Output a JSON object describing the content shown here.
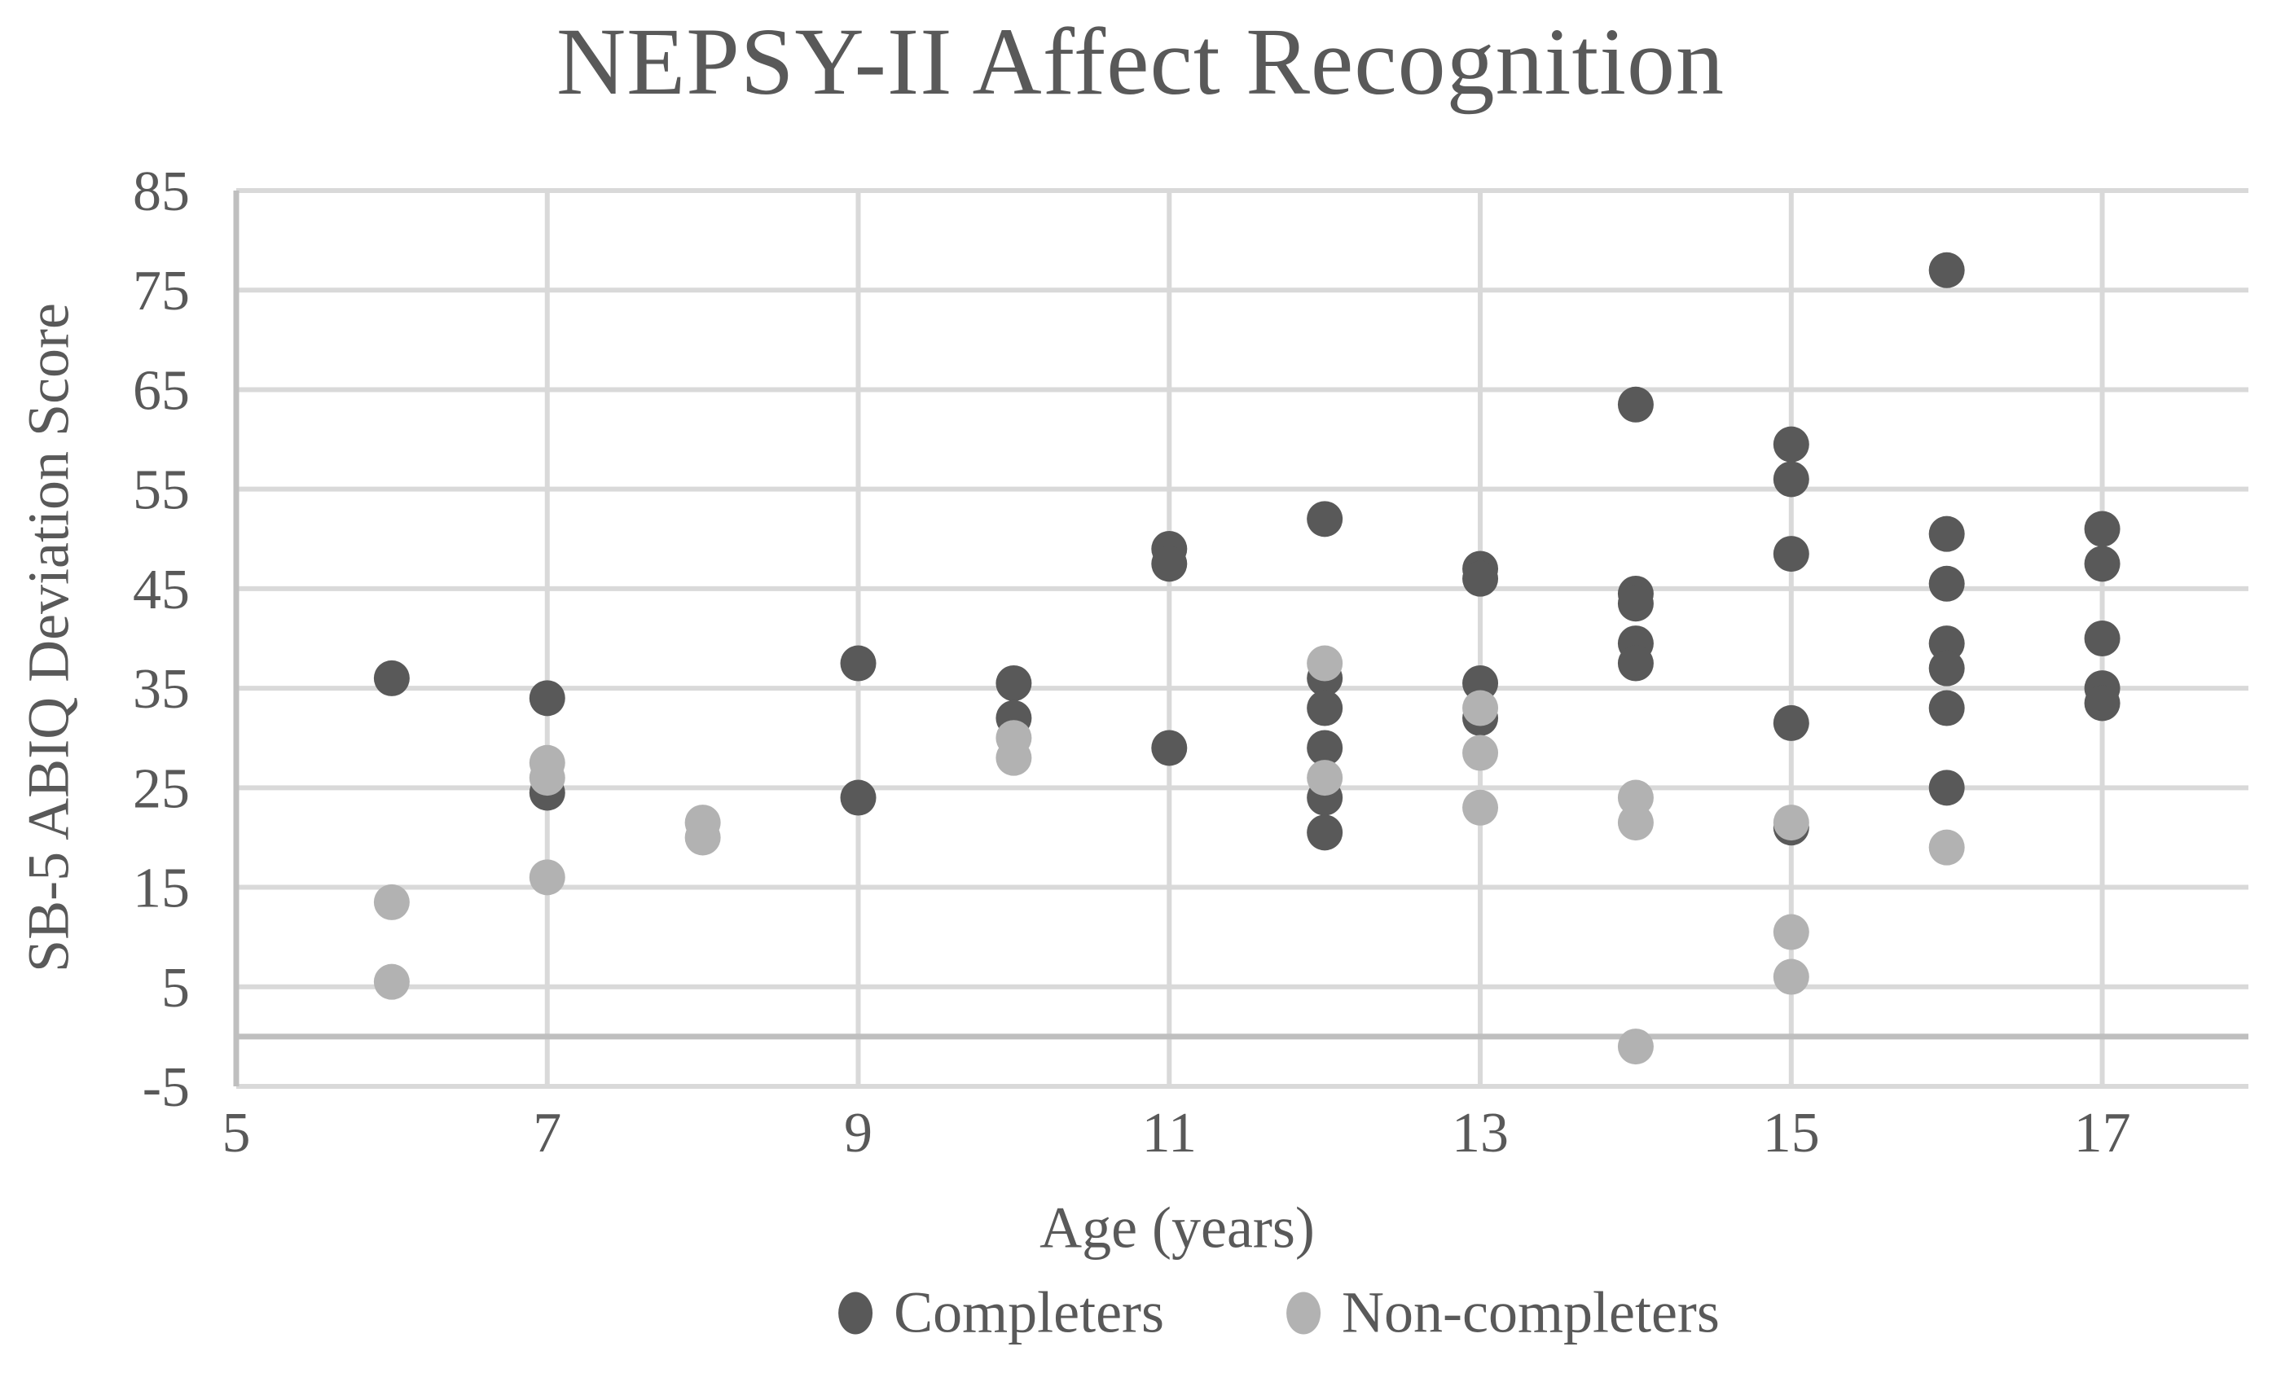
{
  "chart_data": {
    "type": "scatter",
    "title": "NEPSY-II Affect Recognition",
    "xlabel": "Age (years)",
    "ylabel": "SB-5 ABIQ Deviation Score",
    "x_ticks": [
      5,
      7,
      9,
      11,
      13,
      15,
      17
    ],
    "y_ticks": [
      85,
      75,
      65,
      55,
      45,
      35,
      25,
      15,
      5,
      -5
    ],
    "xlim": [
      5,
      17.94
    ],
    "ylim": [
      -5,
      85
    ],
    "grid": true,
    "zero_axis_line": 0,
    "legend_position": "bottom-center",
    "colors": {
      "completers": "#595959",
      "non_completers": "#b2b2b2",
      "gridline": "#d9d9d9",
      "axis_line": "#bfbfbf",
      "text": "#595959"
    },
    "series": [
      {
        "name": "Completers",
        "color": "#595959",
        "points": [
          [
            6,
            36
          ],
          [
            7,
            34
          ],
          [
            7,
            24.5
          ],
          [
            9,
            37.5
          ],
          [
            9,
            24
          ],
          [
            10,
            35.5
          ],
          [
            10,
            32
          ],
          [
            11,
            49
          ],
          [
            11,
            47.5
          ],
          [
            11,
            29
          ],
          [
            12,
            52
          ],
          [
            12,
            36
          ],
          [
            12,
            33
          ],
          [
            12,
            29
          ],
          [
            12,
            24
          ],
          [
            12,
            20.5
          ],
          [
            13,
            47
          ],
          [
            13,
            46
          ],
          [
            13,
            35.5
          ],
          [
            13,
            32
          ],
          [
            14,
            63.5
          ],
          [
            14,
            44.5
          ],
          [
            14,
            43.5
          ],
          [
            14,
            39.5
          ],
          [
            14,
            37.5
          ],
          [
            15,
            59.5
          ],
          [
            15,
            56
          ],
          [
            15,
            48.5
          ],
          [
            15,
            31.5
          ],
          [
            15,
            21
          ],
          [
            16,
            77
          ],
          [
            16,
            50.5
          ],
          [
            16,
            45.5
          ],
          [
            16,
            39.5
          ],
          [
            16,
            37
          ],
          [
            16,
            33
          ],
          [
            16,
            25
          ],
          [
            17,
            51
          ],
          [
            17,
            47.5
          ],
          [
            17,
            40
          ],
          [
            17,
            35
          ],
          [
            17,
            33.5
          ]
        ]
      },
      {
        "name": "Non-completers",
        "color": "#b2b2b2",
        "points": [
          [
            6,
            13.5
          ],
          [
            6,
            5.5
          ],
          [
            7,
            27.5
          ],
          [
            7,
            26
          ],
          [
            7,
            16
          ],
          [
            8,
            21.5
          ],
          [
            8,
            20
          ],
          [
            10,
            30
          ],
          [
            10,
            28
          ],
          [
            12,
            37.5
          ],
          [
            12,
            26
          ],
          [
            13,
            33
          ],
          [
            13,
            28.5
          ],
          [
            13,
            23
          ],
          [
            14,
            24
          ],
          [
            14,
            21.5
          ],
          [
            14,
            -1
          ],
          [
            15,
            21.5
          ],
          [
            15,
            10.5
          ],
          [
            15,
            6
          ],
          [
            16,
            19
          ]
        ]
      }
    ]
  },
  "legend": {
    "completers_label": "Completers",
    "non_completers_label": "Non-completers"
  }
}
